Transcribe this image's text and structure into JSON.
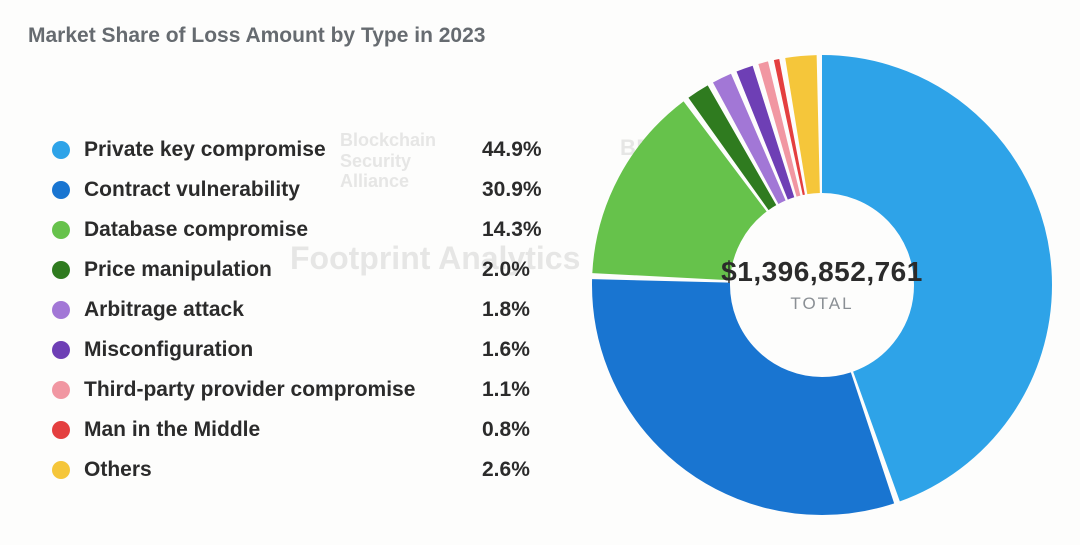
{
  "title": "Market Share of Loss Amount by Type in 2023",
  "chart": {
    "type": "donut",
    "total_value": "$1,396,852,761",
    "total_label": "TOTAL",
    "inner_radius_pct": 58,
    "gap_deg": 1.5,
    "background_color": "#fdfdfc",
    "slices": [
      {
        "label": "Private key compromise",
        "pct": 44.9,
        "pct_text": "44.9%",
        "color": "#2ea3e8"
      },
      {
        "label": "Contract vulnerability",
        "pct": 30.9,
        "pct_text": "30.9%",
        "color": "#1975d1"
      },
      {
        "label": "Database compromise",
        "pct": 14.3,
        "pct_text": "14.3%",
        "color": "#66c24b"
      },
      {
        "label": "Price manipulation",
        "pct": 2.0,
        "pct_text": "2.0%",
        "color": "#2f7b1f"
      },
      {
        "label": "Arbitrage attack",
        "pct": 1.8,
        "pct_text": "1.8%",
        "color": "#a277d6"
      },
      {
        "label": "Misconfiguration",
        "pct": 1.6,
        "pct_text": "1.6%",
        "color": "#6e3fb5"
      },
      {
        "label": "Third-party provider compromise",
        "pct": 1.1,
        "pct_text": "1.1%",
        "color": "#f197a2"
      },
      {
        "label": "Man in the Middle",
        "pct": 0.8,
        "pct_text": "0.8%",
        "color": "#e43f3f"
      },
      {
        "label": "Others",
        "pct": 2.6,
        "pct_text": "2.6%",
        "color": "#f5c63a"
      }
    ]
  },
  "watermarks": {
    "footprint": "Footprint Analytics",
    "bsa_l1": "Blockchain",
    "bsa_l2": "Security",
    "bsa_l3": "Alliance",
    "beosin": "BEOSIN"
  },
  "typography": {
    "title_fontsize": 21,
    "legend_fontsize": 21,
    "center_value_fontsize": 28,
    "center_label_fontsize": 17
  }
}
